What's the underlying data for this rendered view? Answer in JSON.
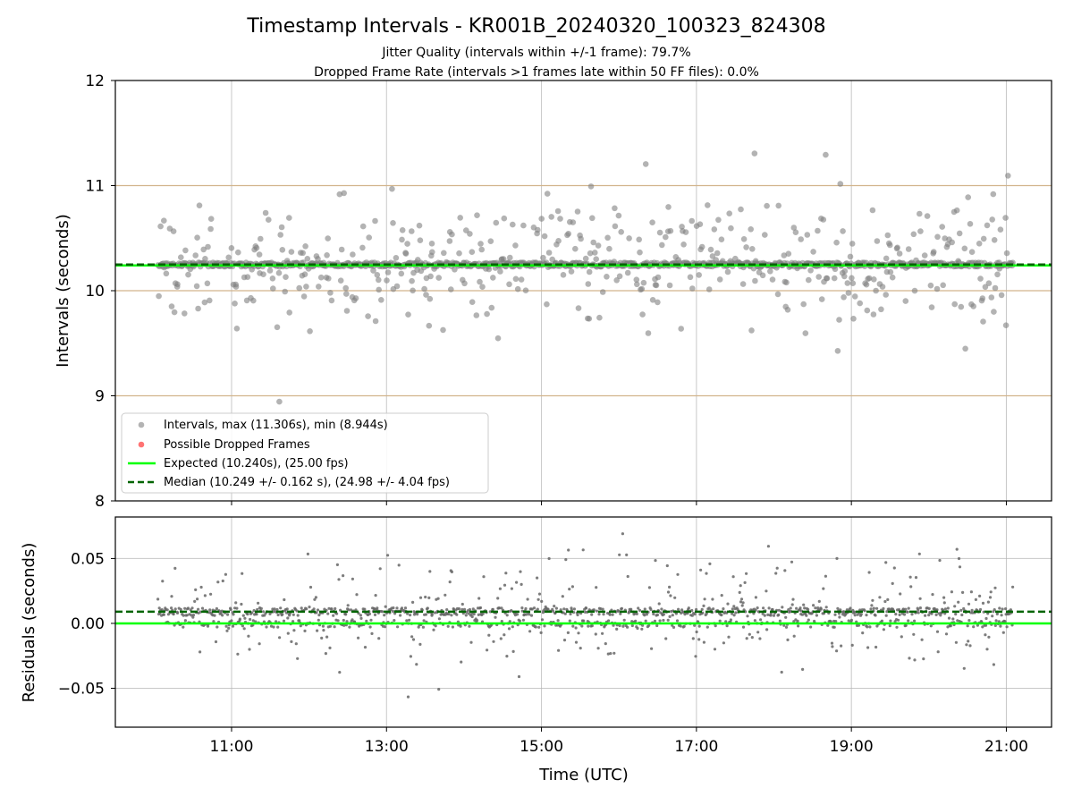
{
  "title": "Timestamp Intervals - KR001B_20240320_100323_824308",
  "subtitle_1": "Jitter Quality (intervals within +/-1 frame): 79.7%",
  "subtitle_2": "Dropped Frame Rate (intervals >1 frames late within 50 FF files): 0.0%",
  "xlabel": "Time (UTC)",
  "colors": {
    "points": "#808080",
    "dropped": "#ff0000",
    "expected": "#00ff00",
    "median": "#006400",
    "frame_lines": "#d2b48c",
    "grid": "#b0b0b0"
  },
  "chart_data": [
    {
      "type": "scatter",
      "name": "intervals",
      "ylabel": "Intervals (seconds)",
      "ylim": [
        8,
        12
      ],
      "yticks": [
        "8",
        "9",
        "10",
        "11",
        "12"
      ],
      "xlim": [
        "09:30",
        "21:35"
      ],
      "xticks": [
        "11:00",
        "13:00",
        "15:00",
        "17:00",
        "19:00",
        "21:00"
      ],
      "time_range": [
        "10:03",
        "21:05"
      ],
      "grid": "x-only",
      "frame_lines": [
        9,
        10,
        11
      ],
      "expected": 10.24,
      "median": 10.249,
      "max": 11.306,
      "min": 8.944,
      "point_count": 1300,
      "spread_std": 0.3,
      "legend_position": "lower left",
      "legend": [
        {
          "label": "Intervals, max (11.306s), min (8.944s)",
          "kind": "dot-gray"
        },
        {
          "label": "Possible Dropped Frames",
          "kind": "dot-red"
        },
        {
          "label": "Expected (10.240s), (25.00 fps)",
          "kind": "line-green"
        },
        {
          "label": "Median (10.249 +/- 0.162 s), (24.98 +/- 4.04 fps)",
          "kind": "dash-darkgreen"
        }
      ],
      "dropped_frames": []
    },
    {
      "type": "scatter",
      "name": "residuals",
      "ylabel": "Residuals (seconds)",
      "ylim": [
        -0.08,
        0.082
      ],
      "yticks": [
        "−0.05",
        "0.00",
        "0.05"
      ],
      "ytick_values": [
        -0.05,
        0.0,
        0.05
      ],
      "xlim": [
        "09:30",
        "21:35"
      ],
      "xticks": [
        "11:00",
        "13:00",
        "15:00",
        "17:00",
        "19:00",
        "21:00"
      ],
      "grid": "both",
      "expected": 0.0,
      "median": 0.009,
      "point_count": 1300
    }
  ]
}
